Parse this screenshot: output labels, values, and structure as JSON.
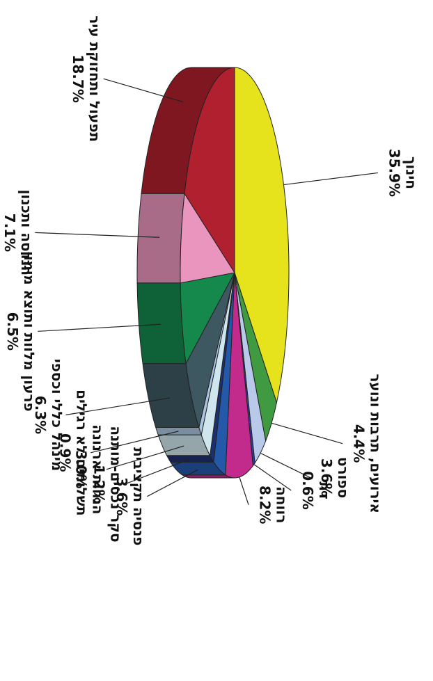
{
  "chart_data": {
    "type": "pie",
    "categories": [
      "חינוך",
      "אירועים, תרבות ונוער",
      "ספורט",
      "דת",
      "רווחה",
      "פנסיה תקציבית",
      "סקר נכסים-מותנה",
      "הנחות ארנונה",
      "תשלומים לא רגילים",
      "מינהל כללי וכספי",
      "פרעון מלוות ותוצא מימון",
      "הנדסה ותכנון",
      "תפעול ותחזוקת עיר"
    ],
    "values": [
      35.9,
      4.4,
      3.6,
      0.6,
      8.2,
      3.6,
      1.2,
      3.0,
      0.9,
      6.3,
      6.5,
      7.1,
      18.7
    ],
    "value_labels": [
      "35.9%",
      "4.4%",
      "3.6%",
      "0.6%",
      "8.2%",
      "3.6%",
      "1.2%",
      "3.0%",
      "0.9%",
      "6.3%",
      "6.5%",
      "7.1%",
      "18.7%"
    ],
    "colors": [
      "#e6e21c",
      "#3f9a42",
      "#b9c9ea",
      "#2c3f9c",
      "#c22a8c",
      "#2458a8",
      "#1e2f6e",
      "#cfe6ee",
      "#a9c4e0",
      "#3e5862",
      "#15884c",
      "#e995bd",
      "#b0202e"
    ]
  }
}
